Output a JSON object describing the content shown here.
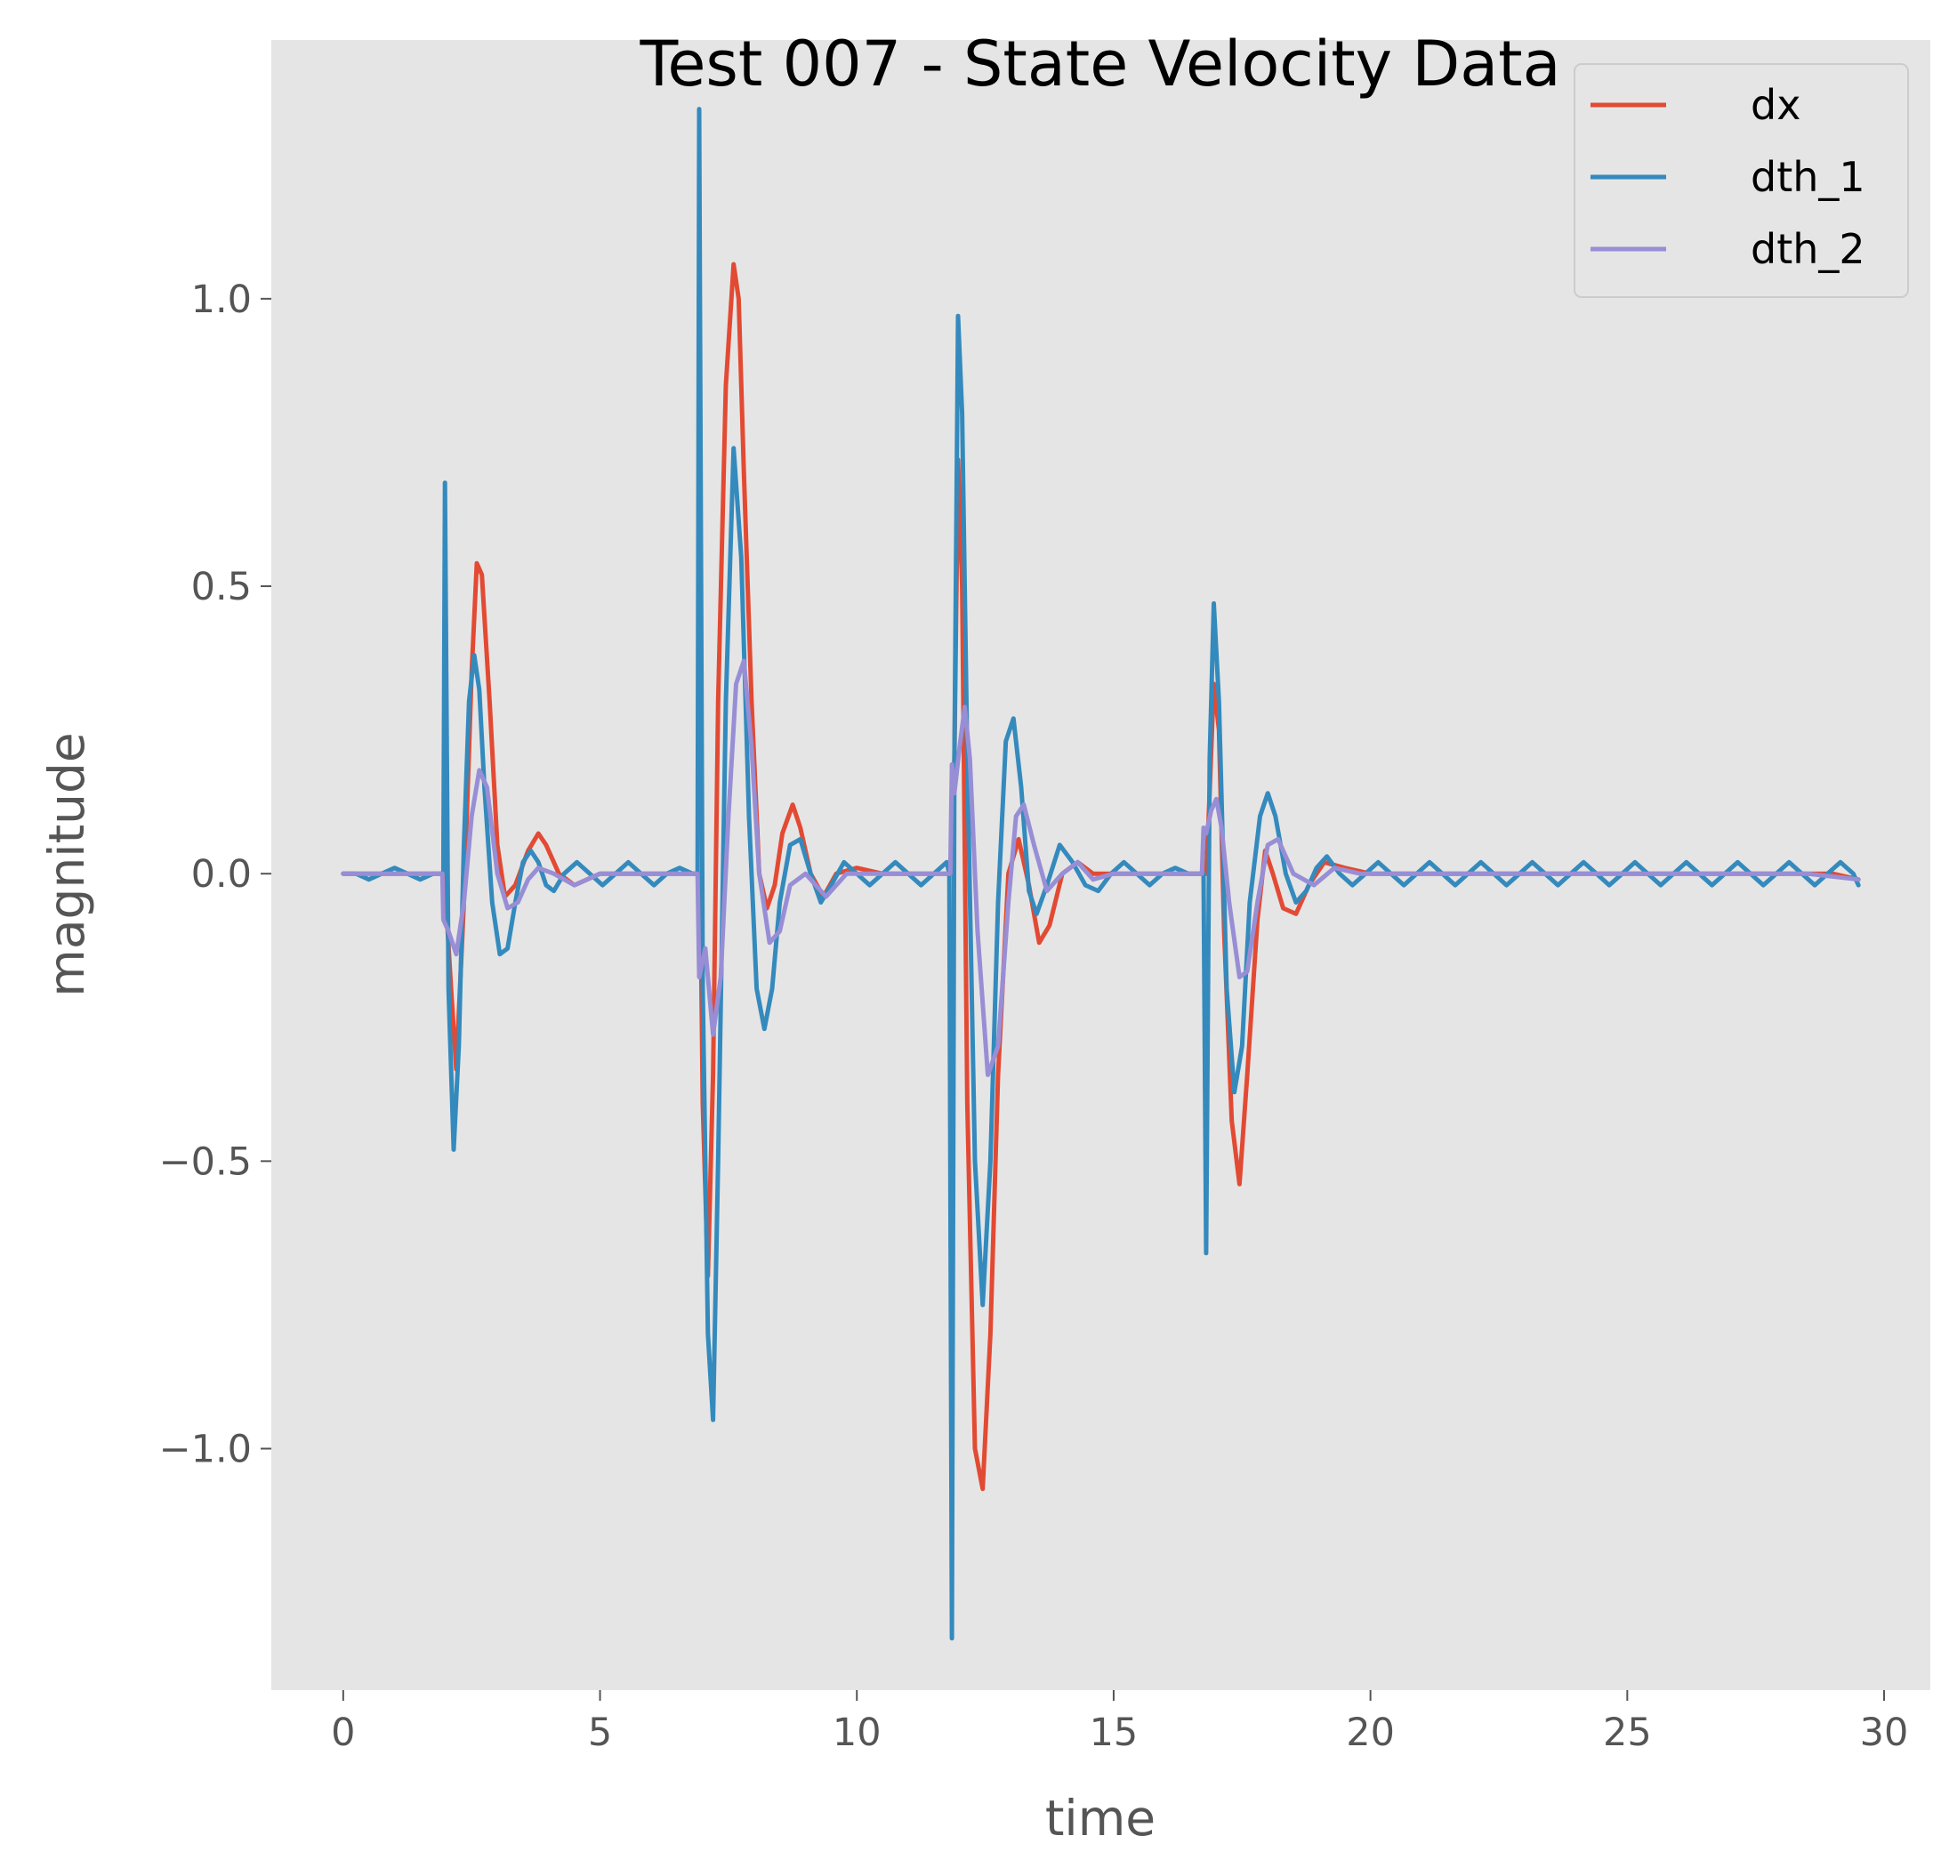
{
  "chart_data": {
    "type": "line",
    "title": "Test 007 - State Velocity Data",
    "xlabel": "time",
    "ylabel": "magnitude",
    "xlim": [
      -1.4,
      30.9
    ],
    "ylim": [
      -1.42,
      1.45
    ],
    "xticks": [
      0,
      5,
      10,
      15,
      20,
      25,
      30
    ],
    "xtick_labels": [
      "0",
      "5",
      "10",
      "15",
      "20",
      "25",
      "30"
    ],
    "yticks": [
      -1.0,
      -0.5,
      0.0,
      0.5,
      1.0
    ],
    "ytick_labels": [
      "−1.0",
      "−0.5",
      "0.0",
      "0.5",
      "1.0"
    ],
    "grid": false,
    "legend_position": "top-right",
    "series": [
      {
        "name": "dx",
        "color": "#E24A33",
        "x": [
          0,
          0.5,
          1.0,
          1.5,
          1.95,
          2.0,
          2.1,
          2.2,
          2.35,
          2.5,
          2.6,
          2.7,
          2.85,
          3.0,
          3.15,
          3.35,
          3.6,
          3.8,
          3.95,
          4.2,
          4.5,
          5.0,
          5.5,
          6.0,
          6.5,
          6.95,
          7.0,
          7.1,
          7.2,
          7.3,
          7.45,
          7.6,
          7.7,
          7.8,
          7.95,
          8.1,
          8.25,
          8.4,
          8.55,
          8.75,
          8.9,
          9.1,
          9.35,
          9.6,
          10.0,
          10.5,
          11.0,
          11.5,
          11.85,
          11.9,
          11.97,
          12.05,
          12.15,
          12.3,
          12.45,
          12.6,
          12.75,
          12.95,
          13.15,
          13.35,
          13.55,
          13.75,
          14.0,
          14.3,
          14.6,
          15.0,
          15.5,
          16.0,
          16.5,
          16.8,
          16.85,
          16.95,
          17.05,
          17.15,
          17.3,
          17.45,
          17.6,
          17.8,
          17.95,
          18.1,
          18.3,
          18.55,
          18.8,
          19.1,
          19.5,
          20.0,
          20.5,
          21.0,
          21.5,
          22.0,
          22.5,
          23.0,
          23.5,
          24.0,
          24.5,
          25.0,
          25.5,
          26.0,
          26.5,
          27.0,
          27.5,
          28.0,
          28.5,
          29.0,
          29.5
        ],
        "values": [
          0,
          0,
          0,
          0,
          0,
          -0.05,
          -0.2,
          -0.34,
          -0.05,
          0.35,
          0.54,
          0.52,
          0.3,
          0.05,
          -0.04,
          -0.02,
          0.04,
          0.07,
          0.05,
          0.0,
          -0.02,
          0.0,
          0.0,
          0.0,
          0.0,
          0.0,
          -0.4,
          -0.7,
          -0.35,
          0.3,
          0.85,
          1.06,
          1.0,
          0.7,
          0.3,
          0.0,
          -0.06,
          -0.02,
          0.07,
          0.12,
          0.08,
          0.0,
          -0.04,
          0.0,
          0.01,
          0.0,
          0.0,
          0.0,
          0.0,
          0.2,
          0.72,
          0.5,
          -0.4,
          -1.0,
          -1.07,
          -0.8,
          -0.35,
          0.0,
          0.06,
          -0.02,
          -0.12,
          -0.09,
          0.0,
          0.02,
          0.0,
          0.0,
          0.0,
          0.0,
          0.0,
          0.0,
          0.1,
          0.33,
          0.25,
          -0.1,
          -0.43,
          -0.54,
          -0.35,
          -0.08,
          0.04,
          0.0,
          -0.06,
          -0.07,
          -0.02,
          0.02,
          0.01,
          0.0,
          0.0,
          0.0,
          0.0,
          0.0,
          0.0,
          0.0,
          0.0,
          0.0,
          0.0,
          0.0,
          0.0,
          0.0,
          0.0,
          0.0,
          0.0,
          0.0,
          0.0,
          0.0,
          -0.01
        ]
      },
      {
        "name": "dth_1",
        "color": "#348ABD",
        "x": [
          0,
          0.25,
          0.5,
          0.75,
          1.0,
          1.25,
          1.5,
          1.75,
          1.95,
          1.98,
          2.05,
          2.15,
          2.25,
          2.35,
          2.45,
          2.55,
          2.65,
          2.75,
          2.9,
          3.05,
          3.2,
          3.35,
          3.5,
          3.65,
          3.8,
          3.95,
          4.1,
          4.3,
          4.55,
          4.8,
          5.05,
          5.3,
          5.55,
          5.8,
          6.05,
          6.3,
          6.55,
          6.8,
          6.9,
          6.93,
          7.0,
          7.1,
          7.2,
          7.3,
          7.45,
          7.6,
          7.75,
          7.9,
          8.05,
          8.2,
          8.35,
          8.5,
          8.7,
          8.9,
          9.1,
          9.3,
          9.5,
          9.75,
          10.0,
          10.25,
          10.5,
          10.75,
          11.0,
          11.25,
          11.5,
          11.75,
          11.8,
          11.85,
          11.9,
          11.97,
          12.05,
          12.15,
          12.3,
          12.45,
          12.6,
          12.75,
          12.9,
          13.05,
          13.2,
          13.35,
          13.5,
          13.7,
          13.95,
          14.2,
          14.45,
          14.7,
          14.95,
          15.2,
          15.45,
          15.7,
          15.95,
          16.2,
          16.45,
          16.7,
          16.75,
          16.8,
          16.87,
          16.95,
          17.05,
          17.2,
          17.35,
          17.5,
          17.65,
          17.85,
          18.0,
          18.15,
          18.35,
          18.55,
          18.75,
          18.95,
          19.15,
          19.4,
          19.65,
          19.9,
          20.15,
          20.4,
          20.65,
          20.9,
          21.15,
          21.4,
          21.65,
          21.9,
          22.15,
          22.4,
          22.65,
          22.9,
          23.15,
          23.4,
          23.65,
          23.9,
          24.15,
          24.4,
          24.65,
          24.9,
          25.15,
          25.4,
          25.65,
          25.9,
          26.15,
          26.4,
          26.65,
          26.9,
          27.15,
          27.4,
          27.65,
          27.9,
          28.15,
          28.4,
          28.65,
          28.9,
          29.15,
          29.4,
          29.5
        ],
        "values": [
          0,
          0.0,
          -0.01,
          0.0,
          0.01,
          0.0,
          -0.01,
          0.0,
          0.0,
          0.68,
          -0.2,
          -0.48,
          -0.3,
          0.05,
          0.3,
          0.38,
          0.32,
          0.15,
          -0.05,
          -0.14,
          -0.13,
          -0.05,
          0.02,
          0.04,
          0.02,
          -0.02,
          -0.03,
          0.0,
          0.02,
          0.0,
          -0.02,
          0.0,
          0.02,
          0.0,
          -0.02,
          0.0,
          0.01,
          0.0,
          0.0,
          1.33,
          -0.2,
          -0.8,
          -0.95,
          -0.5,
          0.3,
          0.74,
          0.55,
          0.1,
          -0.2,
          -0.27,
          -0.2,
          -0.05,
          0.05,
          0.06,
          0.0,
          -0.05,
          -0.02,
          0.02,
          0.0,
          -0.02,
          0.0,
          0.02,
          0.0,
          -0.02,
          0.0,
          0.02,
          0.0,
          -1.33,
          0.2,
          0.97,
          0.8,
          0.2,
          -0.5,
          -0.75,
          -0.5,
          -0.05,
          0.23,
          0.27,
          0.15,
          -0.03,
          -0.07,
          -0.02,
          0.05,
          0.02,
          -0.02,
          -0.03,
          0.0,
          0.02,
          0.0,
          -0.02,
          0.0,
          0.01,
          0.0,
          0.0,
          0.0,
          -0.66,
          0.2,
          0.47,
          0.3,
          -0.2,
          -0.38,
          -0.3,
          -0.05,
          0.1,
          0.14,
          0.1,
          0.0,
          -0.05,
          -0.03,
          0.01,
          0.03,
          0.0,
          -0.02,
          0.0,
          0.02,
          0.0,
          -0.02,
          0.0,
          0.02,
          0.0,
          -0.02,
          0.0,
          0.02,
          0.0,
          -0.02,
          0.0,
          0.02,
          0.0,
          -0.02,
          0.0,
          0.02,
          0.0,
          -0.02,
          0.0,
          0.02,
          0.0,
          -0.02,
          0.0,
          0.02,
          0.0,
          -0.02,
          0.0,
          0.02,
          0.0,
          -0.02,
          0.0,
          0.02,
          0.0,
          -0.02,
          0.0,
          0.02,
          0.0,
          -0.02
        ]
      },
      {
        "name": "dth_2",
        "color": "#988ED5",
        "x": [
          0,
          0.5,
          1.0,
          1.5,
          1.93,
          1.95,
          2.05,
          2.2,
          2.35,
          2.5,
          2.65,
          2.8,
          3.0,
          3.2,
          3.4,
          3.6,
          3.8,
          4.1,
          4.5,
          5.0,
          5.5,
          6.0,
          6.5,
          6.9,
          6.93,
          7.05,
          7.2,
          7.35,
          7.5,
          7.65,
          7.8,
          7.95,
          8.1,
          8.3,
          8.5,
          8.7,
          9.0,
          9.4,
          9.8,
          10.2,
          10.6,
          11.0,
          11.5,
          11.82,
          11.85,
          11.9,
          12.0,
          12.1,
          12.2,
          12.35,
          12.55,
          12.75,
          12.95,
          13.1,
          13.25,
          13.45,
          13.7,
          14.0,
          14.3,
          14.6,
          15.0,
          15.5,
          16.0,
          16.5,
          16.72,
          16.75,
          16.8,
          16.9,
          17.0,
          17.1,
          17.25,
          17.45,
          17.6,
          17.8,
          18.0,
          18.2,
          18.5,
          18.9,
          19.3,
          19.8,
          20.5,
          21.5,
          22.5,
          23.5,
          24.5,
          25.5,
          26.5,
          27.5,
          28.5,
          29.5
        ],
        "values": [
          0,
          0.0,
          0.0,
          0.0,
          0.0,
          -0.08,
          -0.1,
          -0.14,
          -0.05,
          0.1,
          0.18,
          0.15,
          0.0,
          -0.06,
          -0.05,
          -0.01,
          0.01,
          0.0,
          -0.02,
          0.0,
          0.0,
          0.0,
          0.0,
          0.0,
          -0.18,
          -0.13,
          -0.28,
          -0.18,
          0.1,
          0.33,
          0.37,
          0.22,
          0.0,
          -0.12,
          -0.1,
          -0.02,
          0.0,
          -0.04,
          0.0,
          0.0,
          0.0,
          0.0,
          0.0,
          0.0,
          0.19,
          0.14,
          0.22,
          0.29,
          0.2,
          -0.1,
          -0.35,
          -0.3,
          -0.05,
          0.1,
          0.12,
          0.05,
          -0.03,
          0.0,
          0.02,
          -0.01,
          0.0,
          0.0,
          0.0,
          0.0,
          0.0,
          0.08,
          0.07,
          0.11,
          0.13,
          0.08,
          -0.05,
          -0.18,
          -0.17,
          -0.05,
          0.05,
          0.06,
          0.0,
          -0.02,
          0.01,
          0.0,
          0.0,
          0.0,
          0.0,
          0.0,
          0.0,
          0.0,
          0.0,
          0.0,
          0.0,
          -0.01
        ]
      }
    ]
  }
}
